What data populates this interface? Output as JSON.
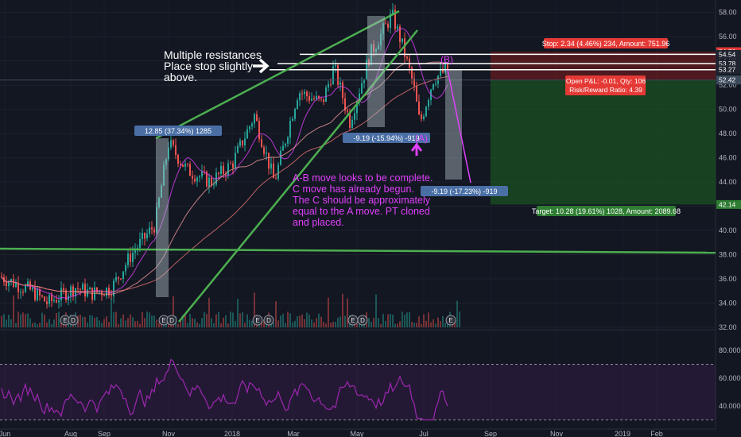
{
  "chart_data": [
    {
      "type": "candlestick",
      "title": "",
      "ylim": [
        32,
        58.5
      ],
      "y_ticks": [
        "58.00",
        "56.00",
        "54.00",
        "52.00",
        "50.00",
        "48.00",
        "46.00",
        "44.00",
        "42.00",
        "40.00",
        "38.00",
        "36.00",
        "34.00",
        "32.00"
      ],
      "x_ticks": [
        "Jun",
        "Aug",
        "Sep",
        "Nov",
        "2018",
        "Mar",
        "May",
        "Jul",
        "Sep",
        "Nov",
        "2019",
        "Feb"
      ],
      "price_labels": [
        {
          "value": 54.76,
          "text": "54.76",
          "color": "#e53935"
        },
        {
          "value": 54.54,
          "text": "54.54",
          "color": "#20242f"
        },
        {
          "value": 53.78,
          "text": "53.78",
          "color": "#20242f"
        },
        {
          "value": 53.27,
          "text": "53.27",
          "color": "#20242f"
        },
        {
          "value": 52.43,
          "text": "52.43",
          "color": "#2e7d32"
        },
        {
          "value": 52.42,
          "text": "52.42",
          "color": "#3c4a5c"
        },
        {
          "value": 42.14,
          "text": "42.14",
          "color": "#2e7d32"
        }
      ],
      "wave_labels": [
        "(B)",
        "(A)"
      ],
      "measure_labels": [
        "12.85 (37.34%) 1285",
        "-9.19 (-15.94%) -919",
        "-9.19 (-17.23%) -919"
      ],
      "position_labels": {
        "stop": "Stop: 2.34 (4.46%) 234, Amount: 751.96",
        "open_pl": "Open P&L: -0.01, Qty: 106",
        "risk_reward": "Risk/Reward Ratio: 4.39",
        "target": "Target: 10.28 (19.61%) 1028, Amount: 2089.68"
      },
      "earnings_marker": "E",
      "dividend_marker": "D"
    },
    {
      "type": "line",
      "title": "",
      "ylim": [
        28,
        92
      ],
      "y_ticks": [
        "80.0000",
        "60.0000",
        "40.0000"
      ],
      "bands": [
        70,
        30
      ]
    }
  ],
  "annotations": {
    "resistance_note": "Multiple resistances\nPlace stop slightly\n above.",
    "wave_note": "A-B move looks to be complete.\nC move has already begun.\nThe C should be approximately\nequal to the A move. PT cloned\nand placed."
  },
  "colors": {
    "background": "#131722",
    "up": "#26a69a",
    "down": "#ef5350",
    "trendline": "#4caf50",
    "rsi": "#9c27b0",
    "annotation": "#e040fb",
    "target_zone": "#1b5e20",
    "stop_zone": "#7f1d1d",
    "measure_box": "#b0bec5"
  }
}
